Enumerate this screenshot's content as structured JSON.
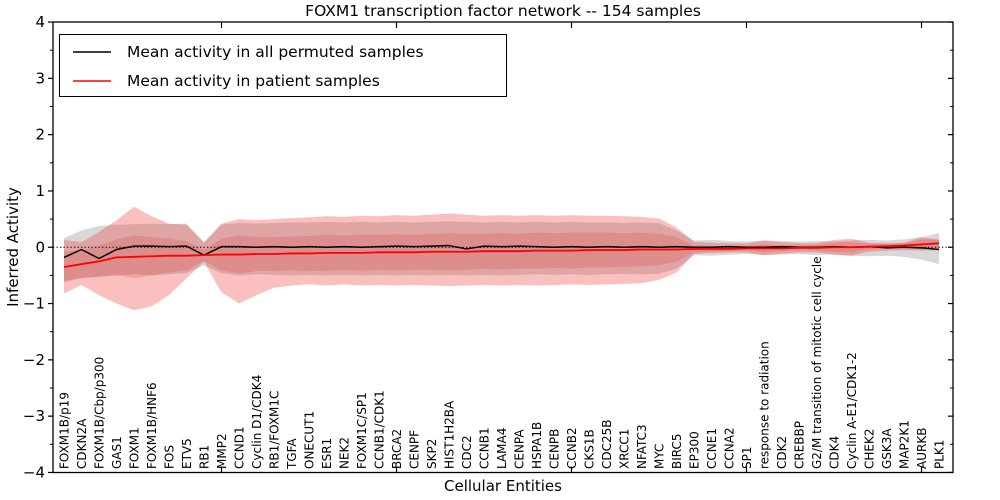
{
  "title": "FOXM1 transcription factor network -- 154 samples",
  "legend": {
    "items": [
      {
        "label": "Mean activity in all permuted samples",
        "color": "#000000"
      },
      {
        "label": "Mean activity in patient samples",
        "color": "#ff0000"
      }
    ]
  },
  "chart_data": {
    "type": "line",
    "title": "FOXM1 transcription factor network -- 154 samples",
    "xlabel": "Cellular Entities",
    "ylabel": "Inferred Activity",
    "ylim": [
      -4,
      4
    ],
    "yticks": [
      4,
      3,
      2,
      1,
      0,
      -1,
      -2,
      -3,
      -4
    ],
    "grid": false,
    "legend_position": "upper left",
    "zero_line": {
      "style": "dotted",
      "color": "#000000",
      "y": 0
    },
    "categories": [
      "FOXM1B/p19",
      "CDKN2A",
      "FOXM1B/Cbp/p300",
      "GAS1",
      "FOXM1",
      "FOXM1B/HNF6",
      "FOS",
      "ETV5",
      "RB1",
      "MMP2",
      "CCND1",
      "Cyclin D1/CDK4",
      "RB1/FOXM1C",
      "TGFA",
      "ONECUT1",
      "ESR1",
      "NEK2",
      "FOXM1C/SP1",
      "CCNB1/CDK1",
      "BRCA2",
      "CENPF",
      "SKP2",
      "HIST1H2BA",
      "CDC2",
      "CCNB1",
      "LAMA4",
      "CENPA",
      "HSPA1B",
      "CENPB",
      "CCNB2",
      "CKS1B",
      "CDC25B",
      "XRCC1",
      "NFATC3",
      "MYC",
      "BIRC5",
      "EP300",
      "CCNE1",
      "CCNA2",
      "SP1",
      "response to radiation",
      "CDK2",
      "CREBBP",
      "G2/M transition of mitotic cell cycle",
      "CDK4",
      "Cyclin A-E1/CDK1-2",
      "CHEK2",
      "GSK3A",
      "MAP2K1",
      "AURKB",
      "PLK1"
    ],
    "series": [
      {
        "name": "Mean activity in all permuted samples",
        "color": "#000000",
        "width": 1.5,
        "values": [
          -0.18,
          -0.04,
          -0.2,
          -0.04,
          0.02,
          0.02,
          0.01,
          0.02,
          -0.14,
          0.01,
          0.01,
          0.0,
          0.01,
          0.0,
          0.01,
          0.0,
          0.01,
          0.0,
          0.01,
          0.02,
          0.01,
          0.02,
          0.03,
          -0.03,
          0.02,
          0.01,
          0.02,
          0.01,
          0.0,
          0.01,
          0.0,
          0.01,
          0.0,
          0.01,
          0.0,
          0.01,
          0.0,
          0.0,
          0.01,
          0.0,
          0.0,
          0.01,
          0.0,
          0.0,
          0.01,
          0.0,
          0.01,
          -0.01,
          0.0,
          -0.01,
          -0.04
        ]
      },
      {
        "name": "Mean activity in patient samples",
        "color": "#ff0000",
        "width": 1.8,
        "values": [
          -0.35,
          -0.3,
          -0.25,
          -0.18,
          -0.17,
          -0.16,
          -0.15,
          -0.15,
          -0.14,
          -0.13,
          -0.13,
          -0.12,
          -0.12,
          -0.11,
          -0.11,
          -0.1,
          -0.1,
          -0.1,
          -0.09,
          -0.09,
          -0.09,
          -0.08,
          -0.08,
          -0.08,
          -0.07,
          -0.07,
          -0.07,
          -0.06,
          -0.06,
          -0.06,
          -0.05,
          -0.05,
          -0.05,
          -0.04,
          -0.04,
          -0.04,
          -0.03,
          -0.03,
          -0.03,
          -0.02,
          -0.02,
          -0.02,
          -0.01,
          -0.01,
          0.0,
          0.0,
          0.01,
          0.02,
          0.03,
          0.05,
          0.07
        ]
      }
    ],
    "bands": [
      {
        "name": "permuted-samples-std",
        "color": "#999999",
        "opacity": 0.38,
        "upper": [
          0.16,
          0.3,
          0.38,
          0.4,
          0.41,
          0.42,
          0.41,
          0.42,
          0.08,
          0.4,
          0.43,
          0.42,
          0.43,
          0.44,
          0.44,
          0.45,
          0.44,
          0.45,
          0.44,
          0.45,
          0.44,
          0.45,
          0.46,
          0.45,
          0.44,
          0.45,
          0.44,
          0.45,
          0.44,
          0.45,
          0.44,
          0.44,
          0.43,
          0.44,
          0.43,
          0.3,
          0.12,
          0.13,
          0.11,
          0.1,
          0.12,
          0.11,
          0.1,
          0.11,
          0.1,
          0.12,
          0.13,
          0.12,
          0.14,
          0.18,
          0.25
        ],
        "lower": [
          -0.6,
          -0.55,
          -0.52,
          -0.5,
          -0.48,
          -0.5,
          -0.48,
          -0.46,
          -0.32,
          -0.46,
          -0.5,
          -0.48,
          -0.49,
          -0.5,
          -0.49,
          -0.5,
          -0.49,
          -0.5,
          -0.49,
          -0.5,
          -0.49,
          -0.5,
          -0.49,
          -0.5,
          -0.49,
          -0.5,
          -0.49,
          -0.48,
          -0.49,
          -0.48,
          -0.49,
          -0.48,
          -0.47,
          -0.48,
          -0.47,
          -0.38,
          -0.14,
          -0.15,
          -0.13,
          -0.12,
          -0.14,
          -0.13,
          -0.12,
          -0.14,
          -0.13,
          -0.15,
          -0.16,
          -0.15,
          -0.17,
          -0.22,
          -0.3
        ]
      },
      {
        "name": "patient-samples-outer",
        "color": "#f03030",
        "opacity": 0.3,
        "upper": [
          0.13,
          0.09,
          0.27,
          0.48,
          0.72,
          0.55,
          0.42,
          0.4,
          0.09,
          0.42,
          0.5,
          0.48,
          0.5,
          0.52,
          0.53,
          0.55,
          0.54,
          0.56,
          0.55,
          0.57,
          0.56,
          0.58,
          0.6,
          0.58,
          0.56,
          0.57,
          0.56,
          0.57,
          0.56,
          0.57,
          0.56,
          0.56,
          0.55,
          0.54,
          0.51,
          0.35,
          0.1,
          0.08,
          0.07,
          0.07,
          0.12,
          0.09,
          0.07,
          0.07,
          0.13,
          0.15,
          0.08,
          0.07,
          0.08,
          0.18,
          0.13
        ],
        "lower": [
          -0.82,
          -0.67,
          -0.85,
          -1.0,
          -1.12,
          -1.05,
          -0.85,
          -0.55,
          -0.26,
          -0.8,
          -1.0,
          -0.85,
          -0.72,
          -0.68,
          -0.66,
          -0.68,
          -0.66,
          -0.68,
          -0.67,
          -0.68,
          -0.67,
          -0.68,
          -0.69,
          -0.68,
          -0.67,
          -0.68,
          -0.67,
          -0.68,
          -0.67,
          -0.66,
          -0.67,
          -0.66,
          -0.65,
          -0.64,
          -0.58,
          -0.45,
          -0.12,
          -0.1,
          -0.09,
          -0.09,
          -0.14,
          -0.11,
          -0.09,
          -0.09,
          -0.13,
          -0.15,
          -0.08,
          -0.06,
          -0.05,
          -0.06,
          -0.05
        ]
      },
      {
        "name": "patient-samples-inner",
        "color": "#e02020",
        "opacity": 0.18,
        "upper": [
          -0.07,
          -0.06,
          0.03,
          0.14,
          0.21,
          0.18,
          0.15,
          0.11,
          -0.04,
          0.15,
          0.21,
          0.18,
          0.18,
          0.19,
          0.2,
          0.22,
          0.21,
          0.22,
          0.22,
          0.23,
          0.22,
          0.24,
          0.25,
          0.24,
          0.24,
          0.25,
          0.24,
          0.26,
          0.25,
          0.26,
          0.26,
          0.26,
          0.25,
          0.26,
          0.24,
          0.18,
          0.03,
          0.02,
          0.01,
          0.02,
          0.05,
          0.03,
          0.03,
          0.04,
          0.08,
          0.09,
          0.06,
          0.06,
          0.07,
          0.14,
          0.14
        ],
        "lower": [
          -0.63,
          -0.54,
          -0.53,
          -0.5,
          -0.55,
          -0.5,
          -0.45,
          -0.41,
          -0.24,
          -0.41,
          -0.47,
          -0.42,
          -0.42,
          -0.41,
          -0.42,
          -0.42,
          -0.41,
          -0.42,
          -0.4,
          -0.41,
          -0.4,
          -0.4,
          -0.41,
          -0.4,
          -0.38,
          -0.39,
          -0.38,
          -0.38,
          -0.37,
          -0.38,
          -0.36,
          -0.36,
          -0.35,
          -0.34,
          -0.32,
          -0.26,
          -0.09,
          -0.08,
          -0.07,
          -0.06,
          -0.09,
          -0.07,
          -0.05,
          -0.06,
          -0.08,
          -0.09,
          -0.04,
          -0.02,
          -0.01,
          -0.04,
          0.0
        ]
      }
    ]
  }
}
